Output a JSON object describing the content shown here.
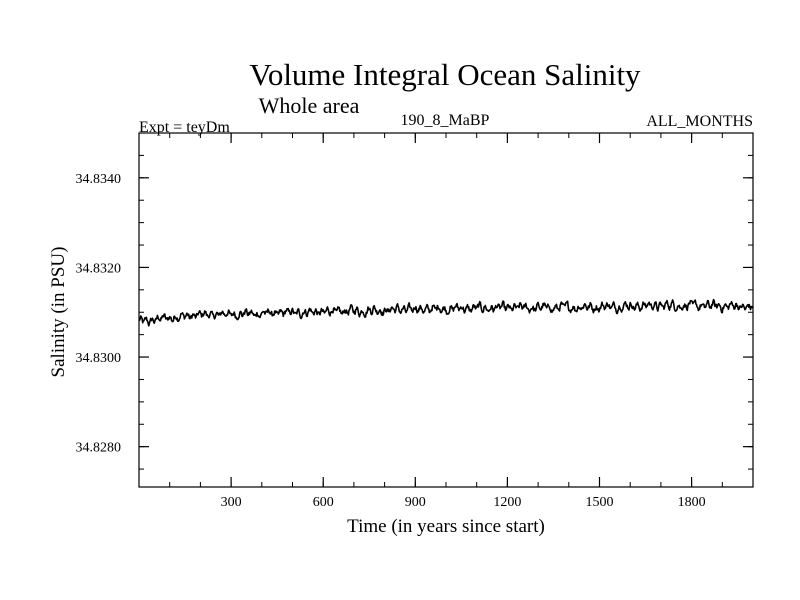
{
  "chart_data": {
    "type": "line",
    "title": "Volume Integral Ocean Salinity",
    "subtitle": "Whole area",
    "header_left": "Expt = teyDm",
    "header_center": "190_8_MaBP",
    "header_right": "ALL_MONTHS",
    "xlabel": "Time (in years since start)",
    "ylabel": "Salinity (in PSU)",
    "xlim": [
      0,
      2000
    ],
    "ylim": [
      34.8271,
      34.835
    ],
    "x_ticks": [
      300,
      600,
      900,
      1200,
      1500,
      1800
    ],
    "x_tick_labels": [
      "300",
      "600",
      "900",
      "1200",
      "1500",
      "1800"
    ],
    "y_ticks": [
      34.828,
      34.83,
      34.832,
      34.834
    ],
    "y_tick_labels": [
      "34.8280",
      "34.8300",
      "34.8320",
      "34.8340"
    ],
    "grid": false,
    "series": [
      {
        "color": "#000000",
        "x": [
          0,
          100,
          200,
          300,
          400,
          500,
          600,
          700,
          800,
          900,
          1000,
          1100,
          1200,
          1300,
          1400,
          1500,
          1600,
          1700,
          1800,
          1900,
          2000
        ],
        "y": [
          34.83078,
          34.83088,
          34.83094,
          34.83096,
          34.83097,
          34.83099,
          34.83101,
          34.83103,
          34.83105,
          34.83107,
          34.83108,
          34.83109,
          34.8311,
          34.8311,
          34.83111,
          34.83112,
          34.83114,
          34.83115,
          34.83115,
          34.83114,
          34.83112
        ]
      }
    ]
  }
}
